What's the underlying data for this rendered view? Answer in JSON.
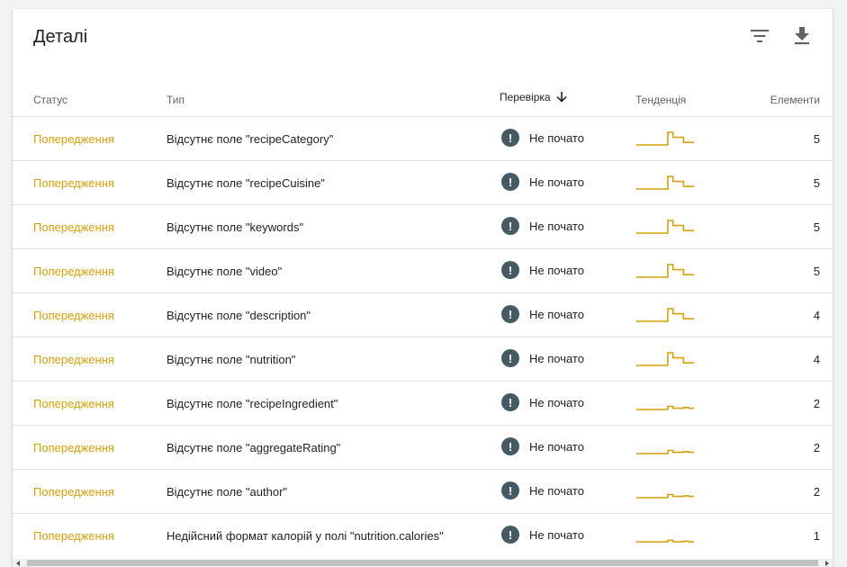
{
  "card": {
    "title": "Деталі"
  },
  "icons": {
    "filter": "filter-icon",
    "download": "download-icon",
    "sort": "arrow-downward-icon",
    "status": "exclamation-icon"
  },
  "columns": {
    "status": "Статус",
    "type": "Тип",
    "check": "Перевірка",
    "trend": "Тенденція",
    "items": "Елементи"
  },
  "colors": {
    "warning": "#d6a10c",
    "badge": "#455a64",
    "trend": "#d6a10c"
  },
  "rows": [
    {
      "status": "Попередження",
      "type": "Відсутнє поле \"recipeCategory\"",
      "check": "Не почато",
      "trend": [
        0,
        0,
        0,
        0,
        0,
        0,
        1,
        0.6,
        0.6,
        0.2,
        0.2,
        0.2
      ],
      "items": "5"
    },
    {
      "status": "Попередження",
      "type": "Відсутнє поле \"recipeCuisine\"",
      "check": "Не почато",
      "trend": [
        0,
        0,
        0,
        0,
        0,
        0,
        1,
        0.6,
        0.6,
        0.2,
        0.2,
        0.2
      ],
      "items": "5"
    },
    {
      "status": "Попередження",
      "type": "Відсутнє поле \"keywords\"",
      "check": "Не почато",
      "trend": [
        0,
        0,
        0,
        0,
        0,
        0,
        1,
        0.6,
        0.6,
        0.2,
        0.2,
        0.2
      ],
      "items": "5"
    },
    {
      "status": "Попередження",
      "type": "Відсутнє поле \"video\"",
      "check": "Не почато",
      "trend": [
        0,
        0,
        0,
        0,
        0,
        0,
        1,
        0.6,
        0.6,
        0.2,
        0.2,
        0.2
      ],
      "items": "5"
    },
    {
      "status": "Попередження",
      "type": "Відсутнє поле \"description\"",
      "check": "Не почато",
      "trend": [
        0,
        0,
        0,
        0,
        0,
        0,
        1,
        0.6,
        0.6,
        0.2,
        0.2,
        0.2
      ],
      "items": "4"
    },
    {
      "status": "Попередження",
      "type": "Відсутнє поле \"nutrition\"",
      "check": "Не почато",
      "trend": [
        0,
        0,
        0,
        0,
        0,
        0,
        1,
        0.6,
        0.6,
        0.2,
        0.2,
        0.2
      ],
      "items": "4"
    },
    {
      "status": "Попередження",
      "type": "Відсутнє поле \"recipeIngredient\"",
      "check": "Не почато",
      "trend": [
        0,
        0,
        0,
        0,
        0,
        0,
        0.25,
        0.1,
        0.1,
        0.15,
        0.1,
        0.1
      ],
      "items": "2"
    },
    {
      "status": "Попередження",
      "type": "Відсутнє поле \"aggregateRating\"",
      "check": "Не почато",
      "trend": [
        0,
        0,
        0,
        0,
        0,
        0,
        0.25,
        0.1,
        0.1,
        0.15,
        0.1,
        0.1
      ],
      "items": "2"
    },
    {
      "status": "Попередження",
      "type": "Відсутнє поле \"author\"",
      "check": "Не почато",
      "trend": [
        0,
        0,
        0,
        0,
        0,
        0,
        0.25,
        0.1,
        0.1,
        0.15,
        0.1,
        0.1
      ],
      "items": "2"
    },
    {
      "status": "Попередження",
      "type": "Недійсний формат калорій у полі \"nutrition.calories\"",
      "check": "Не почато",
      "trend": [
        0,
        0,
        0,
        0,
        0,
        0,
        0.12,
        0,
        0,
        0.05,
        0,
        0
      ],
      "items": "1"
    }
  ]
}
